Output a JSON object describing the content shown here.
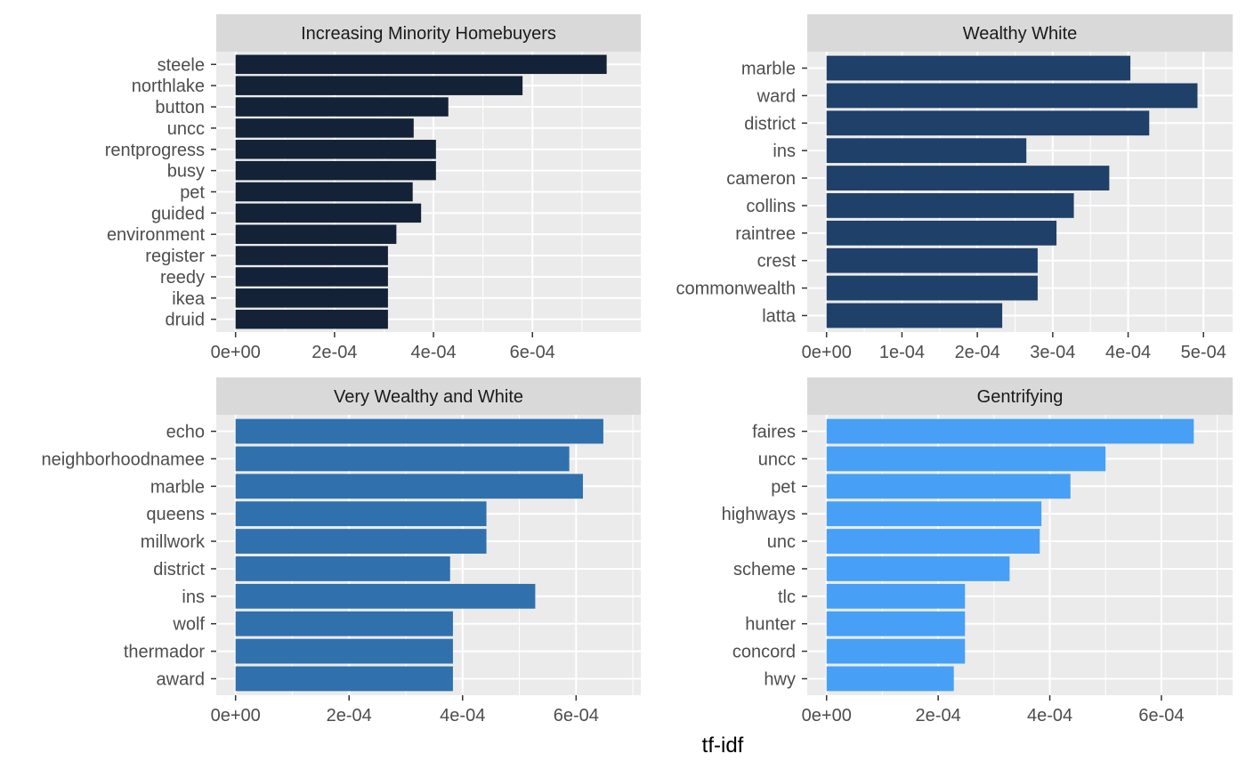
{
  "chart_data": {
    "type": "bar",
    "orientation": "horizontal",
    "xlabel": "tf-idf",
    "grid": true,
    "facets": [
      {
        "title": "Increasing Minority Homebuyers",
        "color": "#132236",
        "xlim": [
          0,
          0.00078
        ],
        "ticks": [
          "0e+00",
          "2e-04",
          "4e-04",
          "6e-04"
        ],
        "tick_values": [
          0,
          0.0002,
          0.0004,
          0.0006
        ],
        "categories": [
          "steele",
          "northlake",
          "button",
          "uncc",
          "rentprogress",
          "busy",
          "pet",
          "guided",
          "environment",
          "register",
          "reedy",
          "ikea",
          "druid"
        ],
        "values": [
          0.00075,
          0.00058,
          0.00043,
          0.00036,
          0.000405,
          0.000405,
          0.000358,
          0.000375,
          0.000325,
          0.000308,
          0.000308,
          0.000308,
          0.000308
        ]
      },
      {
        "title": "Wealthy White",
        "color": "#1f4068",
        "xlim": [
          0,
          0.000513
        ],
        "ticks": [
          "0e+00",
          "1e-04",
          "2e-04",
          "3e-04",
          "4e-04",
          "5e-04"
        ],
        "tick_values": [
          0,
          0.0001,
          0.0002,
          0.0003,
          0.0004,
          0.0005
        ],
        "categories": [
          "marble",
          "ward",
          "district",
          "ins",
          "cameron",
          "collins",
          "raintree",
          "crest",
          "commonwealth",
          "latta"
        ],
        "values": [
          0.000403,
          0.000492,
          0.000428,
          0.000265,
          0.000375,
          0.000328,
          0.000305,
          0.00028,
          0.00028,
          0.000233
        ]
      },
      {
        "title": "Very Wealthy and White",
        "color": "#3070ad",
        "xlim": [
          0,
          0.00068
        ],
        "ticks": [
          "0e+00",
          "2e-04",
          "4e-04",
          "6e-04"
        ],
        "tick_values": [
          0,
          0.0002,
          0.0004,
          0.0006
        ],
        "categories": [
          "echo",
          "neighborhoodnamee",
          "marble",
          "queens",
          "millwork",
          "district",
          "ins",
          "wolf",
          "thermador",
          "award"
        ],
        "values": [
          0.000648,
          0.000588,
          0.000612,
          0.000442,
          0.000442,
          0.000378,
          0.000528,
          0.000383,
          0.000383,
          0.000383
        ]
      },
      {
        "title": "Gentrifying",
        "color": "#47a0f5",
        "xlim": [
          0,
          0.000693
        ],
        "ticks": [
          "0e+00",
          "2e-04",
          "4e-04",
          "6e-04"
        ],
        "tick_values": [
          0,
          0.0002,
          0.0004,
          0.0006
        ],
        "categories": [
          "faires",
          "uncc",
          "pet",
          "highways",
          "unc",
          "scheme",
          "tlc",
          "hunter",
          "concord",
          "hwy"
        ],
        "values": [
          0.000658,
          0.0005,
          0.000437,
          0.000385,
          0.000382,
          0.000328,
          0.000248,
          0.000248,
          0.000248,
          0.000228
        ]
      }
    ]
  }
}
